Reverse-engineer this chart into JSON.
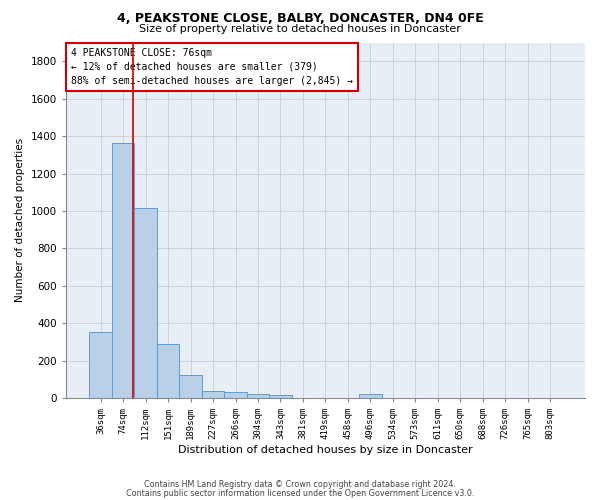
{
  "title1": "4, PEAKSTONE CLOSE, BALBY, DONCASTER, DN4 0FE",
  "title2": "Size of property relative to detached houses in Doncaster",
  "xlabel": "Distribution of detached houses by size in Doncaster",
  "ylabel": "Number of detached properties",
  "categories": [
    "36sqm",
    "74sqm",
    "112sqm",
    "151sqm",
    "189sqm",
    "227sqm",
    "266sqm",
    "304sqm",
    "343sqm",
    "381sqm",
    "419sqm",
    "458sqm",
    "496sqm",
    "534sqm",
    "573sqm",
    "611sqm",
    "650sqm",
    "688sqm",
    "726sqm",
    "765sqm",
    "803sqm"
  ],
  "values": [
    355,
    1365,
    1015,
    290,
    125,
    40,
    32,
    22,
    18,
    0,
    0,
    0,
    22,
    0,
    0,
    0,
    0,
    0,
    0,
    0,
    0
  ],
  "bar_color": "#b8d0e8",
  "bar_edge_color": "#5b9bd5",
  "vline_x": 1.42,
  "vline_color": "#cc0000",
  "annotation_line1": "4 PEAKSTONE CLOSE: 76sqm",
  "annotation_line2": "← 12% of detached houses are smaller (379)",
  "annotation_line3": "88% of semi-detached houses are larger (2,845) →",
  "annotation_box_color": "#ffffff",
  "annotation_box_edge": "#cc0000",
  "ylim": [
    0,
    1900
  ],
  "yticks": [
    0,
    200,
    400,
    600,
    800,
    1000,
    1200,
    1400,
    1600,
    1800
  ],
  "grid_color": "#cccccc",
  "bg_color": "#e8eef5",
  "footer1": "Contains HM Land Registry data © Crown copyright and database right 2024.",
  "footer2": "Contains public sector information licensed under the Open Government Licence v3.0."
}
